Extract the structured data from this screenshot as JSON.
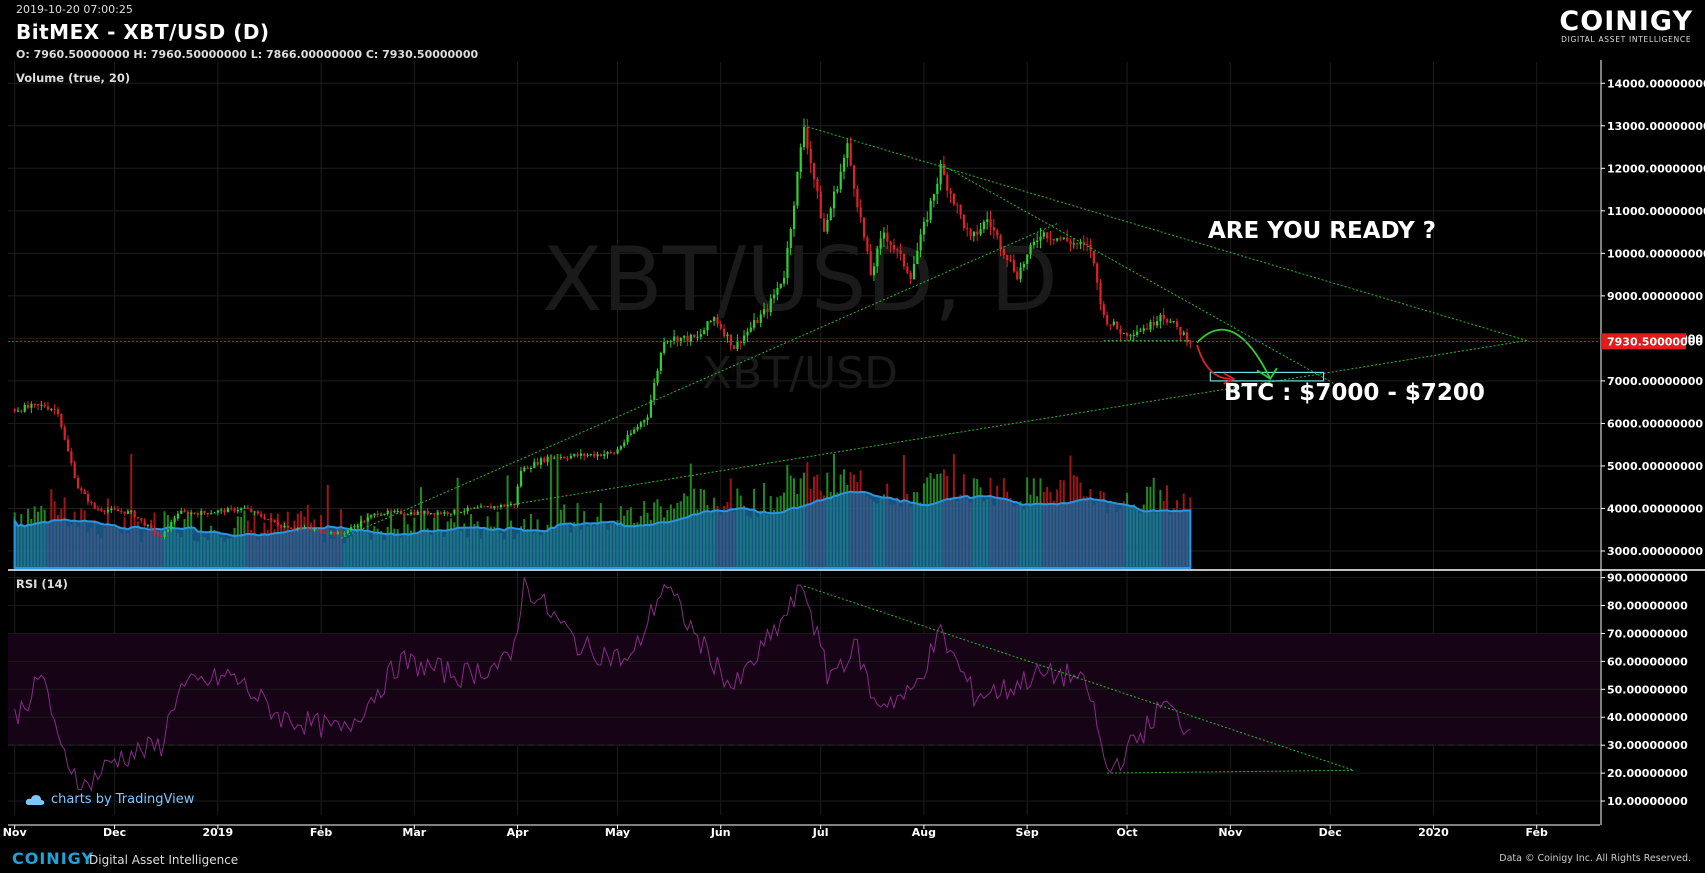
{
  "header": {
    "datetime": "2019-10-20 07:00:25",
    "title": "BitMEX - XBT/USD (D)",
    "ohlc": "O: 7960.50000000 H: 7960.50000000 L: 7866.00000000 C: 7930.50000000"
  },
  "logo": {
    "name": "COINIGY",
    "tagline": "DIGITAL ASSET INTELLIGENCE"
  },
  "watermark": {
    "main": "XBT/USD, D",
    "sub": "XBT/USD"
  },
  "panes": {
    "volume_label": "Volume (true, 20)",
    "rsi_label": "RSI (14)"
  },
  "footer": {
    "tv_credit": "charts by TradingView",
    "brand": "COINIGY",
    "brand_sub": "Digital Asset Intelligence",
    "rights": "Data © Coinigy Inc.  All Rights Reserved."
  },
  "colors": {
    "up": "#2ed12e",
    "down": "#e0202a",
    "volume_ma": "#1f8fcf",
    "rsi": "#8a2a8a",
    "trend": "#29b82a",
    "price_line": "#e21b1b"
  },
  "chart_data": [
    {
      "type": "candlestick",
      "title": "BitMEX - XBT/USD (D)",
      "x_ticks": [
        "Nov",
        "Dec",
        "2019",
        "Feb",
        "Mar",
        "Apr",
        "May",
        "Jun",
        "Jul",
        "Aug",
        "Sep",
        "Oct",
        "Nov",
        "Dec",
        "2020",
        "Feb"
      ],
      "y_ticks": [
        "14000.00000000",
        "13000.00000000",
        "12000.00000000",
        "11000.00000000",
        "10000.00000000",
        "9000.00000000",
        "8000.00000000",
        "7000.00000000",
        "6000.00000000",
        "5000.00000000",
        "4000.00000000",
        "3000.00000000"
      ],
      "ylim": [
        2600,
        14500
      ],
      "last_price": 7930.5,
      "last_price_label": "7930.50000000",
      "approx_close_path": [
        [
          "2018-11-01",
          6330
        ],
        [
          "2018-11-10",
          6420
        ],
        [
          "2018-11-14",
          6300
        ],
        [
          "2018-11-16",
          5600
        ],
        [
          "2018-11-20",
          4500
        ],
        [
          "2018-11-25",
          4000
        ],
        [
          "2018-12-06",
          3900
        ],
        [
          "2018-12-15",
          3300
        ],
        [
          "2018-12-20",
          3900
        ],
        [
          "2018-12-28",
          3900
        ],
        [
          "2019-01-09",
          4000
        ],
        [
          "2019-01-20",
          3600
        ],
        [
          "2019-02-07",
          3400
        ],
        [
          "2019-02-18",
          3900
        ],
        [
          "2019-03-10",
          3900
        ],
        [
          "2019-03-31",
          4100
        ],
        [
          "2019-04-02",
          4900
        ],
        [
          "2019-04-10",
          5200
        ],
        [
          "2019-04-30",
          5300
        ],
        [
          "2019-05-10",
          6200
        ],
        [
          "2019-05-15",
          8000
        ],
        [
          "2019-05-25",
          8000
        ],
        [
          "2019-05-30",
          8500
        ],
        [
          "2019-06-05",
          7800
        ],
        [
          "2019-06-15",
          8700
        ],
        [
          "2019-06-20",
          9500
        ],
        [
          "2019-06-26",
          13000
        ],
        [
          "2019-07-02",
          10500
        ],
        [
          "2019-07-09",
          12500
        ],
        [
          "2019-07-16",
          9500
        ],
        [
          "2019-07-20",
          10500
        ],
        [
          "2019-07-28",
          9500
        ],
        [
          "2019-08-06",
          12000
        ],
        [
          "2019-08-15",
          10300
        ],
        [
          "2019-08-20",
          10800
        ],
        [
          "2019-08-29",
          9500
        ],
        [
          "2019-09-05",
          10500
        ],
        [
          "2019-09-20",
          10100
        ],
        [
          "2019-09-24",
          8500
        ],
        [
          "2019-09-30",
          8100
        ],
        [
          "2019-10-08",
          8300
        ],
        [
          "2019-10-11",
          8600
        ],
        [
          "2019-10-20",
          7930
        ]
      ],
      "annotations": [
        "ARE YOU READY ?",
        "BTC : $7000 - $7200"
      ]
    },
    {
      "type": "bar",
      "title": "Volume (true, 20)",
      "note": "volume histogram with 20-period moving average area"
    },
    {
      "type": "line",
      "title": "RSI (14)",
      "y_ticks": [
        "90.00000000",
        "80.00000000",
        "70.00000000",
        "60.00000000",
        "50.00000000",
        "40.00000000",
        "30.00000000",
        "20.00000000",
        "10.00000000"
      ],
      "ylim": [
        5,
        92
      ],
      "bands": [
        30,
        70
      ],
      "approx_path": [
        [
          "2018-11-01",
          40
        ],
        [
          "2018-11-10",
          55
        ],
        [
          "2018-11-14",
          30
        ],
        [
          "2018-11-22",
          15
        ],
        [
          "2018-12-01",
          25
        ],
        [
          "2018-12-15",
          30
        ],
        [
          "2018-12-20",
          50
        ],
        [
          "2019-01-05",
          55
        ],
        [
          "2019-01-20",
          40
        ],
        [
          "2019-02-08",
          35
        ],
        [
          "2019-02-25",
          60
        ],
        [
          "2019-03-15",
          55
        ],
        [
          "2019-03-30",
          60
        ],
        [
          "2019-04-03",
          88
        ],
        [
          "2019-04-20",
          65
        ],
        [
          "2019-05-05",
          60
        ],
        [
          "2019-05-15",
          88
        ],
        [
          "2019-05-25",
          68
        ],
        [
          "2019-06-05",
          50
        ],
        [
          "2019-06-18",
          72
        ],
        [
          "2019-06-26",
          87
        ],
        [
          "2019-07-03",
          55
        ],
        [
          "2019-07-12",
          65
        ],
        [
          "2019-07-17",
          45
        ],
        [
          "2019-07-28",
          48
        ],
        [
          "2019-08-06",
          70
        ],
        [
          "2019-08-16",
          48
        ],
        [
          "2019-08-26",
          50
        ],
        [
          "2019-09-03",
          55
        ],
        [
          "2019-09-15",
          55
        ],
        [
          "2019-09-20",
          48
        ],
        [
          "2019-09-25",
          20
        ],
        [
          "2019-10-01",
          28
        ],
        [
          "2019-10-08",
          38
        ],
        [
          "2019-10-12",
          45
        ],
        [
          "2019-10-20",
          35
        ]
      ]
    }
  ]
}
